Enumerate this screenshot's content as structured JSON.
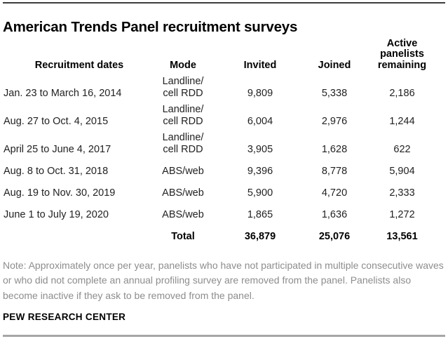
{
  "title": "American Trends Panel recruitment surveys",
  "table": {
    "headers": [
      "Recruitment dates",
      "Mode",
      "Invited",
      "Joined",
      "Active\npanelists\nremaining"
    ],
    "rows": [
      {
        "dates": "Jan. 23 to March 16, 2014",
        "mode": "Landline/\ncell RDD",
        "invited": "9,809",
        "joined": "5,338",
        "remaining": "2,186"
      },
      {
        "dates": "Aug. 27 to Oct. 4, 2015",
        "mode": "Landline/\ncell RDD",
        "invited": "6,004",
        "joined": "2,976",
        "remaining": "1,244"
      },
      {
        "dates": "April 25 to June 4, 2017",
        "mode": "Landline/\ncell RDD",
        "invited": "3,905",
        "joined": "1,628",
        "remaining": "622"
      },
      {
        "dates": "Aug. 8 to Oct. 31, 2018",
        "mode": "ABS/web",
        "invited": "9,396",
        "joined": "8,778",
        "remaining": "5,904"
      },
      {
        "dates": "Aug. 19 to Nov. 30, 2019",
        "mode": "ABS/web",
        "invited": "5,900",
        "joined": "4,720",
        "remaining": "2,333"
      },
      {
        "dates": "June 1 to July 19, 2020",
        "mode": "ABS/web",
        "invited": "1,865",
        "joined": "1,636",
        "remaining": "1,272"
      }
    ],
    "total": {
      "label": "Total",
      "invited": "36,879",
      "joined": "25,076",
      "remaining": "13,561"
    }
  },
  "note": "Note: Approximately once per year, panelists who have not participated in multiple consecutive waves or who did not complete an annual profiling survey are removed from the panel. Panelists also become inactive if they ask to be removed from the panel.",
  "source": "PEW RESEARCH CENTER",
  "colors": {
    "title_text": "#000000",
    "body_text": "#222222",
    "note_text": "#8d8d8d",
    "top_rule": "#3d3d3d",
    "bottom_rule": "#a6a6a6"
  },
  "chart_data": {
    "type": "table",
    "title": "American Trends Panel recruitment surveys",
    "columns": [
      "Recruitment dates",
      "Mode",
      "Invited",
      "Joined",
      "Active panelists remaining"
    ],
    "rows": [
      [
        "Jan. 23 to March 16, 2014",
        "Landline/cell RDD",
        9809,
        5338,
        2186
      ],
      [
        "Aug. 27 to Oct. 4, 2015",
        "Landline/cell RDD",
        6004,
        2976,
        1244
      ],
      [
        "April 25 to June 4, 2017",
        "Landline/cell RDD",
        3905,
        1628,
        622
      ],
      [
        "Aug. 8 to Oct. 31, 2018",
        "ABS/web",
        9396,
        8778,
        5904
      ],
      [
        "Aug. 19 to Nov. 30, 2019",
        "ABS/web",
        5900,
        4720,
        2333
      ],
      [
        "June 1 to July 19, 2020",
        "ABS/web",
        1865,
        1636,
        1272
      ]
    ],
    "total_row": [
      "",
      "Total",
      36879,
      25076,
      13561
    ],
    "note": "Note: Approximately once per year, panelists who have not participated in multiple consecutive waves or who did not complete an annual profiling survey are removed from the panel. Panelists also become inactive if they ask to be removed from the panel.",
    "source": "PEW RESEARCH CENTER",
    "grid": false
  }
}
